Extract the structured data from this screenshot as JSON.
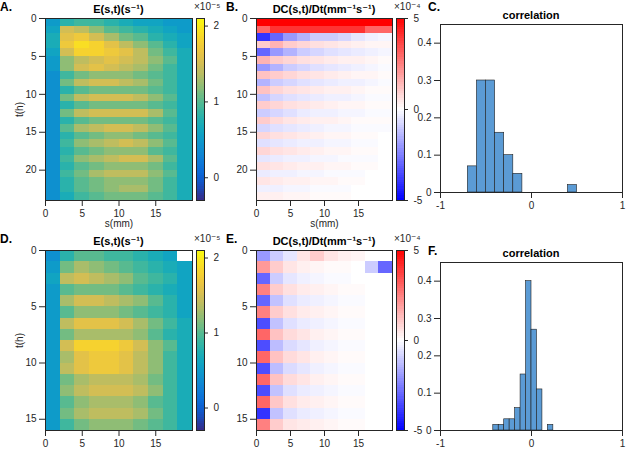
{
  "chart_data": [
    {
      "type": "heatmap",
      "panel": "A.",
      "title": "E(s,t)(s⁻¹)",
      "xlabel": "s(mm)",
      "ylabel": "t(h)",
      "color": "parula",
      "xlim": [
        0,
        20
      ],
      "xticks": [
        0,
        5,
        10,
        15
      ],
      "ylim": [
        0,
        24
      ],
      "yticks": [
        0,
        5,
        10,
        15,
        20
      ],
      "colorbar": {
        "range": [
          -0.3,
          2.1
        ],
        "ticks": [
          0,
          1,
          2
        ],
        "label": "×10⁻⁵"
      },
      "x": [
        1,
        3,
        5,
        7,
        9,
        11,
        13,
        15,
        17,
        19
      ],
      "y": [
        0.5,
        1.5,
        2.5,
        3.5,
        4.5,
        5.5,
        6.5,
        7.5,
        8.5,
        9.5,
        10.5,
        11.5,
        12.5,
        13.5,
        14.5,
        15.5,
        16.5,
        17.5,
        18.5,
        19.5,
        20.5,
        21.5,
        22.5,
        23.5
      ],
      "cells": [
        [
          0.5,
          0.8,
          0.9,
          0.9,
          0.8,
          0.7,
          0.6,
          0.6,
          0.5,
          0.5
        ],
        [
          0.6,
          1.5,
          1.4,
          1.2,
          1.0,
          0.9,
          0.8,
          0.7,
          0.6,
          0.5
        ],
        [
          0.7,
          1.6,
          1.7,
          1.5,
          1.3,
          1.1,
          1.0,
          0.8,
          0.7,
          0.6
        ],
        [
          0.7,
          1.7,
          1.9,
          1.8,
          1.6,
          1.4,
          1.2,
          1.0,
          0.8,
          0.6
        ],
        [
          0.6,
          1.5,
          1.8,
          1.8,
          1.7,
          1.6,
          1.4,
          1.1,
          0.9,
          0.7
        ],
        [
          0.5,
          1.2,
          1.4,
          1.5,
          1.6,
          1.5,
          1.4,
          1.2,
          1.0,
          0.7
        ],
        [
          0.5,
          1.2,
          1.5,
          1.6,
          1.5,
          1.4,
          1.3,
          1.1,
          0.9,
          0.7
        ],
        [
          0.4,
          0.9,
          1.1,
          1.2,
          1.2,
          1.2,
          1.1,
          1.0,
          0.9,
          0.7
        ],
        [
          0.4,
          1.1,
          1.4,
          1.5,
          1.5,
          1.4,
          1.3,
          1.1,
          0.9,
          0.7
        ],
        [
          0.4,
          0.8,
          1.0,
          1.1,
          1.1,
          1.1,
          1.1,
          1.0,
          0.9,
          0.7
        ],
        [
          0.4,
          1.1,
          1.4,
          1.5,
          1.5,
          1.5,
          1.4,
          1.2,
          1.0,
          0.7
        ],
        [
          0.4,
          0.8,
          1.0,
          1.1,
          1.1,
          1.1,
          1.1,
          1.0,
          0.9,
          0.7
        ],
        [
          0.4,
          1.1,
          1.4,
          1.5,
          1.5,
          1.5,
          1.5,
          1.3,
          1.0,
          0.7
        ],
        [
          0.4,
          0.8,
          1.0,
          1.1,
          1.1,
          1.1,
          1.1,
          1.0,
          0.9,
          0.7
        ],
        [
          0.4,
          1.0,
          1.3,
          1.4,
          1.5,
          1.5,
          1.4,
          1.2,
          1.0,
          0.7
        ],
        [
          0.4,
          0.8,
          1.0,
          1.1,
          1.2,
          1.2,
          1.1,
          1.0,
          0.9,
          0.7
        ],
        [
          0.4,
          0.9,
          1.2,
          1.3,
          1.4,
          1.5,
          1.4,
          1.2,
          1.0,
          0.7
        ],
        [
          0.4,
          0.8,
          1.0,
          1.1,
          1.2,
          1.2,
          1.2,
          1.0,
          0.9,
          0.7
        ],
        [
          0.4,
          0.9,
          1.2,
          1.3,
          1.4,
          1.5,
          1.5,
          1.3,
          1.0,
          0.7
        ],
        [
          0.4,
          0.8,
          1.0,
          1.1,
          1.2,
          1.2,
          1.2,
          1.1,
          0.9,
          0.7
        ],
        [
          0.4,
          0.9,
          1.1,
          1.3,
          1.4,
          1.4,
          1.4,
          1.2,
          1.0,
          0.7
        ],
        [
          0.4,
          0.8,
          1.0,
          1.1,
          1.2,
          1.2,
          1.2,
          1.1,
          0.9,
          0.7
        ],
        [
          0.4,
          0.8,
          1.0,
          1.1,
          1.2,
          1.3,
          1.3,
          1.1,
          0.9,
          0.7
        ],
        [
          0.4,
          0.7,
          0.9,
          1.0,
          1.1,
          1.1,
          1.1,
          1.0,
          0.9,
          0.7
        ]
      ]
    },
    {
      "type": "heatmap",
      "panel": "B.",
      "title": "DC(s,t)/Dt(mm⁻¹s⁻¹)",
      "xlabel": "s(mm)",
      "color": "blue-white-red",
      "xlim": [
        0,
        20
      ],
      "xticks": [
        0,
        5,
        10,
        15
      ],
      "ylim": [
        0,
        24
      ],
      "yticks": [
        0,
        5,
        10,
        15,
        20
      ],
      "colorbar": {
        "range": [
          -5,
          5
        ],
        "ticks": [
          -5,
          0,
          5
        ],
        "label": "×10⁻⁴"
      },
      "x": [
        1,
        3,
        5,
        7,
        9,
        11,
        13,
        15,
        17,
        19
      ],
      "y": [
        0.5,
        1.5,
        2.5,
        3.5,
        4.5,
        5.5,
        6.5,
        7.5,
        8.5,
        9.5,
        10.5,
        11.5,
        12.5,
        13.5,
        14.5,
        15.5,
        16.5,
        17.5,
        18.5,
        19.5,
        20.5,
        21.5,
        22.5,
        23.5
      ],
      "cells": [
        [
          5,
          5,
          5,
          5,
          5,
          5,
          5,
          5,
          5,
          5
        ],
        [
          3,
          4,
          4,
          4,
          4,
          4,
          4,
          4,
          3,
          3
        ],
        [
          -4,
          -3,
          -2,
          -1.5,
          -1,
          -1,
          -0.8,
          -0.5,
          -0.3,
          -0.2
        ],
        [
          1,
          1.5,
          1,
          0.8,
          0.6,
          0.5,
          0.4,
          0.3,
          0.2,
          0.2
        ],
        [
          -3,
          -2,
          -1.5,
          -1,
          -0.8,
          -0.6,
          -0.5,
          -0.4,
          -0.3,
          -0.2
        ],
        [
          1.5,
          1,
          0.8,
          0.6,
          0.5,
          0.4,
          0.3,
          0.3,
          0.2,
          0.1
        ],
        [
          -2,
          -1.5,
          -1,
          -0.8,
          -0.6,
          -0.5,
          -0.4,
          -0.3,
          -0.2,
          -0.1
        ],
        [
          1.2,
          1,
          0.8,
          0.6,
          0.5,
          0.4,
          0.3,
          0.2,
          0.2,
          0.1
        ],
        [
          -1.5,
          -1,
          -0.8,
          -0.6,
          -0.5,
          -0.4,
          -0.3,
          -0.3,
          -0.2,
          -0.1
        ],
        [
          1.2,
          0.8,
          0.6,
          0.5,
          0.4,
          0.3,
          0.3,
          0.2,
          0.1,
          0.1
        ],
        [
          -1.2,
          -0.8,
          -0.6,
          -0.5,
          -0.4,
          -0.3,
          -0.3,
          -0.2,
          -0.1,
          -0.1
        ],
        [
          1,
          0.8,
          0.6,
          0.5,
          0.4,
          0.3,
          0.2,
          0.2,
          0.1,
          0.1
        ],
        [
          -1,
          -0.8,
          -0.6,
          -0.4,
          -0.3,
          -0.3,
          -0.2,
          -0.2,
          -0.1,
          -0.1
        ],
        [
          1,
          0.7,
          0.5,
          0.4,
          0.3,
          0.3,
          0.2,
          0.1,
          0.1,
          0.1
        ],
        [
          -0.8,
          -0.6,
          -0.5,
          -0.4,
          -0.3,
          -0.2,
          -0.2,
          -0.1,
          -0.1,
          -0.1
        ],
        [
          0.8,
          0.6,
          0.5,
          0.4,
          0.3,
          0.2,
          0.2,
          0.1,
          0.1,
          0
        ],
        [
          -0.6,
          -0.5,
          -0.4,
          -0.3,
          -0.3,
          -0.2,
          -0.2,
          -0.1,
          -0.1,
          0
        ],
        [
          0.8,
          0.6,
          0.5,
          0.4,
          0.3,
          0.2,
          0.2,
          0.1,
          0.1,
          0
        ],
        [
          -0.5,
          -0.4,
          -0.3,
          -0.3,
          -0.2,
          -0.2,
          -0.1,
          -0.1,
          -0.1,
          0
        ],
        [
          0.6,
          0.5,
          0.4,
          0.3,
          0.3,
          0.2,
          0.2,
          0.1,
          0.1,
          0
        ],
        [
          -0.4,
          -0.3,
          -0.3,
          -0.2,
          -0.2,
          -0.1,
          -0.1,
          -0.1,
          0,
          0
        ],
        [
          0.5,
          0.4,
          0.3,
          0.3,
          0.2,
          0.2,
          0.1,
          0.1,
          0,
          0
        ],
        [
          -0.3,
          -0.3,
          -0.2,
          -0.2,
          -0.1,
          -0.1,
          -0.1,
          0,
          0,
          0
        ],
        [
          0.3,
          0.3,
          0.2,
          0.2,
          0.1,
          0.1,
          0.1,
          0,
          0,
          0
        ]
      ]
    },
    {
      "type": "histogram",
      "panel": "C.",
      "title": "correlation",
      "color": "#5b9bd5",
      "xlim": [
        -1,
        1
      ],
      "xticks": [
        -1,
        0,
        1
      ],
      "ylim": [
        0,
        0.45
      ],
      "yticks": [
        0,
        0.1,
        0.2,
        0.3,
        0.4
      ],
      "bins": [
        -0.7,
        -0.6,
        -0.5,
        -0.4,
        -0.3,
        -0.2,
        -0.1,
        0,
        0.1,
        0.2,
        0.3,
        0.4,
        0.5
      ],
      "counts": [
        0.07,
        0.3,
        0.3,
        0.16,
        0.1,
        0.05,
        0,
        0,
        0,
        0,
        0,
        0.02
      ]
    },
    {
      "type": "heatmap",
      "panel": "D.",
      "title": "E(s,t)(s⁻¹)",
      "ylabel": "t(h)",
      "color": "parula",
      "xlim": [
        0,
        20
      ],
      "xticks": [
        0,
        5,
        10,
        15
      ],
      "ylim": [
        0,
        16
      ],
      "yticks": [
        0,
        5,
        10,
        15
      ],
      "colorbar": {
        "range": [
          -0.3,
          2.1
        ],
        "ticks": [
          0,
          1,
          2
        ],
        "label": "×10⁻⁵"
      },
      "x": [
        1,
        3,
        5,
        7,
        9,
        11,
        13,
        15,
        17,
        19
      ],
      "y": [
        0.5,
        1.5,
        2.5,
        3.5,
        4.5,
        5.5,
        6.5,
        7.5,
        8.5,
        9.5,
        10.5,
        11.5,
        12.5,
        13.5,
        14.5,
        15.5
      ],
      "cells": [
        [
          0.4,
          0.8,
          1.0,
          1.0,
          0.9,
          0.9,
          0.8,
          0.7,
          0.6,
          null
        ],
        [
          0.5,
          1.1,
          1.3,
          1.2,
          1.1,
          1.0,
          0.9,
          0.8,
          0.7,
          0.6
        ],
        [
          0.6,
          1.4,
          1.5,
          1.4,
          1.3,
          1.2,
          1.0,
          0.9,
          0.8,
          0.6
        ],
        [
          0.5,
          1.0,
          1.1,
          1.1,
          1.1,
          1.0,
          0.9,
          0.8,
          0.7,
          0.6
        ],
        [
          0.5,
          1.3,
          1.5,
          1.5,
          1.4,
          1.3,
          1.2,
          1.0,
          0.8,
          0.6
        ],
        [
          0.5,
          1.0,
          1.2,
          1.2,
          1.2,
          1.1,
          1.0,
          0.9,
          0.8,
          0.6
        ],
        [
          0.5,
          1.4,
          1.6,
          1.6,
          1.6,
          1.5,
          1.3,
          1.1,
          0.9,
          0.7
        ],
        [
          0.5,
          1.1,
          1.3,
          1.3,
          1.3,
          1.3,
          1.2,
          1.0,
          0.8,
          0.7
        ],
        [
          0.5,
          1.5,
          1.8,
          1.8,
          1.8,
          1.7,
          1.5,
          1.2,
          1.0,
          0.7
        ],
        [
          0.5,
          1.3,
          1.6,
          1.7,
          1.7,
          1.6,
          1.4,
          1.2,
          0.9,
          0.7
        ],
        [
          0.5,
          1.4,
          1.6,
          1.7,
          1.7,
          1.6,
          1.4,
          1.2,
          0.9,
          0.7
        ],
        [
          0.5,
          1.1,
          1.3,
          1.4,
          1.4,
          1.4,
          1.3,
          1.1,
          0.9,
          0.7
        ],
        [
          0.5,
          1.2,
          1.4,
          1.5,
          1.5,
          1.5,
          1.4,
          1.2,
          0.9,
          0.7
        ],
        [
          0.5,
          1.0,
          1.2,
          1.3,
          1.3,
          1.3,
          1.2,
          1.0,
          0.9,
          0.7
        ],
        [
          0.5,
          1.1,
          1.3,
          1.4,
          1.4,
          1.4,
          1.3,
          1.1,
          0.9,
          0.7
        ],
        [
          0.5,
          0.9,
          1.1,
          1.2,
          1.2,
          1.2,
          1.1,
          1.0,
          0.9,
          0.7
        ]
      ]
    },
    {
      "type": "heatmap",
      "panel": "E.",
      "title": "DC(s,t)/Dt(mm⁻¹s⁻¹)",
      "color": "blue-white-red",
      "xlim": [
        0,
        20
      ],
      "xticks": [
        0,
        5,
        10,
        15
      ],
      "ylim": [
        0,
        16
      ],
      "yticks": [
        0,
        5,
        10,
        15
      ],
      "colorbar": {
        "range": [
          -5,
          5
        ],
        "ticks": [
          -5,
          0,
          5
        ],
        "label": "×10⁻⁴"
      },
      "x": [
        1,
        3,
        5,
        7,
        9,
        11,
        13,
        15,
        17,
        19
      ],
      "y": [
        0.5,
        1.5,
        2.5,
        3.5,
        4.5,
        5.5,
        6.5,
        7.5,
        8.5,
        9.5,
        10.5,
        11.5,
        12.5,
        13.5,
        14.5,
        15.5
      ],
      "cells": [
        [
          -2,
          -1,
          -0.5,
          0.5,
          1,
          0.5,
          0.3,
          0.2,
          0,
          null
        ],
        [
          2,
          1,
          0.5,
          0.3,
          0.2,
          0.1,
          0.1,
          0,
          -1,
          -3
        ],
        [
          -3,
          -1,
          -0.5,
          -0.3,
          -0.2,
          -0.1,
          -0.1,
          0,
          0,
          0
        ],
        [
          2.5,
          1,
          0.6,
          0.4,
          0.3,
          0.2,
          0.1,
          0.1,
          0,
          0
        ],
        [
          -3,
          -1.2,
          -0.6,
          -0.4,
          -0.3,
          -0.2,
          -0.1,
          -0.1,
          0,
          0
        ],
        [
          2.5,
          1,
          0.6,
          0.4,
          0.3,
          0.2,
          0.1,
          0.1,
          0,
          0
        ],
        [
          -3.5,
          -1.2,
          -0.6,
          -0.4,
          -0.3,
          -0.2,
          -0.1,
          -0.1,
          0,
          0
        ],
        [
          3,
          1.2,
          0.7,
          0.5,
          0.3,
          0.2,
          0.1,
          0.1,
          0,
          0
        ],
        [
          -3.5,
          -1.3,
          -0.7,
          -0.5,
          -0.3,
          -0.2,
          -0.1,
          -0.1,
          0,
          0
        ],
        [
          3,
          1.2,
          0.7,
          0.5,
          0.3,
          0.2,
          0.1,
          0.1,
          0,
          0
        ],
        [
          -3.5,
          -1.3,
          -0.7,
          -0.5,
          -0.3,
          -0.2,
          -0.1,
          -0.1,
          0,
          0
        ],
        [
          3,
          1.2,
          0.7,
          0.5,
          0.3,
          0.2,
          0.1,
          0.1,
          0,
          0
        ],
        [
          -3.5,
          -1.2,
          -0.6,
          -0.4,
          -0.3,
          -0.2,
          -0.1,
          -0.1,
          0,
          0
        ],
        [
          3,
          1.1,
          0.6,
          0.4,
          0.3,
          0.2,
          0.1,
          0.1,
          0,
          0
        ],
        [
          -4,
          -1.2,
          -0.6,
          -0.4,
          -0.3,
          -0.2,
          -0.1,
          -0.1,
          0,
          0
        ],
        [
          2.5,
          1,
          0.5,
          0.4,
          0.3,
          0.2,
          0.1,
          0.1,
          0,
          0
        ]
      ]
    },
    {
      "type": "histogram",
      "panel": "F.",
      "title": "correlation",
      "color": "#5b9bd5",
      "xlim": [
        -1,
        1
      ],
      "xticks": [
        -1,
        0,
        1
      ],
      "ylim": [
        0,
        0.45
      ],
      "yticks": [
        0,
        0.1,
        0.2,
        0.3,
        0.4
      ],
      "bins": [
        -0.42,
        -0.36,
        -0.3,
        -0.24,
        -0.18,
        -0.12,
        -0.06,
        0,
        0.06,
        0.12,
        0.18,
        0.24
      ],
      "counts": [
        0.015,
        0.015,
        0.03,
        0.03,
        0.06,
        0.15,
        0.4,
        0.27,
        0.11,
        0,
        0.015
      ]
    }
  ]
}
